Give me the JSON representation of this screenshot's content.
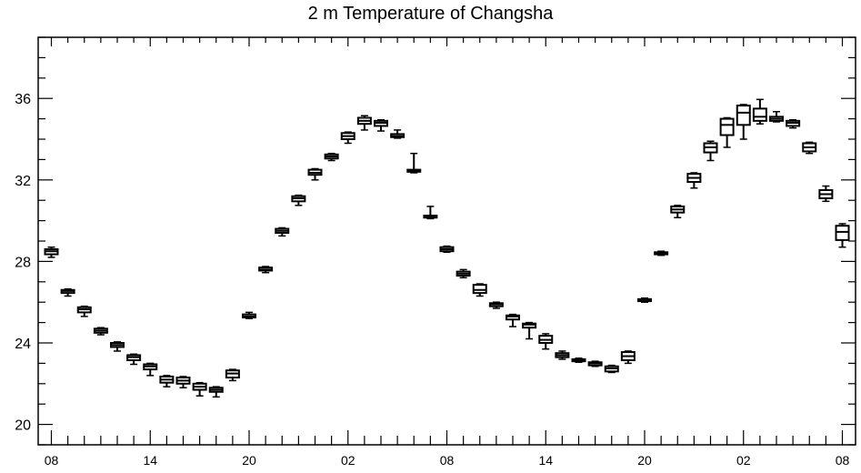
{
  "chart_data": {
    "type": "boxplot",
    "title": "2 m Temperature of Changsha",
    "xlabel": "",
    "ylabel": "",
    "ylim": [
      19,
      39
    ],
    "yticks": [
      20,
      24,
      28,
      32,
      36
    ],
    "x_tick_labels": [
      "08",
      "14",
      "20",
      "02",
      "08",
      "14",
      "20",
      "02",
      "08"
    ],
    "x_tick_label_positions": [
      0,
      6,
      12,
      18,
      24,
      30,
      36,
      42,
      48
    ],
    "x_range": [
      -0.8,
      48.8
    ],
    "grid": false,
    "boxes": [
      {
        "x": 0,
        "q1": 28.35,
        "median": 28.5,
        "q3": 28.6,
        "min": 28.2,
        "max": 28.7
      },
      {
        "x": 1,
        "q1": 26.45,
        "median": 26.55,
        "q3": 26.6,
        "min": 26.3,
        "max": 26.65
      },
      {
        "x": 2,
        "q1": 25.5,
        "median": 25.65,
        "q3": 25.75,
        "min": 25.3,
        "max": 25.8
      },
      {
        "x": 3,
        "q1": 24.5,
        "median": 24.6,
        "q3": 24.7,
        "min": 24.4,
        "max": 24.75
      },
      {
        "x": 4,
        "q1": 23.8,
        "median": 23.9,
        "q3": 24.0,
        "min": 23.6,
        "max": 24.05
      },
      {
        "x": 5,
        "q1": 23.15,
        "median": 23.3,
        "q3": 23.4,
        "min": 22.95,
        "max": 23.45
      },
      {
        "x": 6,
        "q1": 22.7,
        "median": 22.85,
        "q3": 22.95,
        "min": 22.4,
        "max": 23.0
      },
      {
        "x": 7,
        "q1": 22.05,
        "median": 22.2,
        "q3": 22.35,
        "min": 21.85,
        "max": 22.4
      },
      {
        "x": 8,
        "q1": 22.0,
        "median": 22.15,
        "q3": 22.3,
        "min": 21.8,
        "max": 22.35
      },
      {
        "x": 9,
        "q1": 21.7,
        "median": 21.85,
        "q3": 22.0,
        "min": 21.4,
        "max": 22.05
      },
      {
        "x": 10,
        "q1": 21.6,
        "median": 21.7,
        "q3": 21.8,
        "min": 21.35,
        "max": 21.85
      },
      {
        "x": 11,
        "q1": 22.3,
        "median": 22.5,
        "q3": 22.65,
        "min": 22.15,
        "max": 22.7
      },
      {
        "x": 12,
        "q1": 25.25,
        "median": 25.3,
        "q3": 25.4,
        "min": 25.2,
        "max": 25.5
      },
      {
        "x": 13,
        "q1": 27.55,
        "median": 27.6,
        "q3": 27.7,
        "min": 27.45,
        "max": 27.75
      },
      {
        "x": 14,
        "q1": 29.4,
        "median": 29.5,
        "q3": 29.6,
        "min": 29.25,
        "max": 29.65
      },
      {
        "x": 15,
        "q1": 30.95,
        "median": 31.1,
        "q3": 31.2,
        "min": 30.75,
        "max": 31.25
      },
      {
        "x": 16,
        "q1": 32.25,
        "median": 32.35,
        "q3": 32.5,
        "min": 32.0,
        "max": 32.55
      },
      {
        "x": 17,
        "q1": 33.05,
        "median": 33.15,
        "q3": 33.25,
        "min": 32.95,
        "max": 33.3
      },
      {
        "x": 18,
        "q1": 34.0,
        "median": 34.15,
        "q3": 34.3,
        "min": 33.8,
        "max": 34.35
      },
      {
        "x": 19,
        "q1": 34.75,
        "median": 34.9,
        "q3": 35.05,
        "min": 34.45,
        "max": 35.15
      },
      {
        "x": 20,
        "q1": 34.65,
        "median": 34.8,
        "q3": 34.9,
        "min": 34.4,
        "max": 34.95
      },
      {
        "x": 21,
        "q1": 34.1,
        "median": 34.15,
        "q3": 34.25,
        "min": 34.05,
        "max": 34.45
      },
      {
        "x": 22,
        "q1": 32.4,
        "median": 32.45,
        "q3": 32.5,
        "min": 32.35,
        "max": 33.3
      },
      {
        "x": 23,
        "q1": 30.15,
        "median": 30.2,
        "q3": 30.25,
        "min": 30.1,
        "max": 30.7
      },
      {
        "x": 24,
        "q1": 28.5,
        "median": 28.6,
        "q3": 28.7,
        "min": 28.45,
        "max": 28.75
      },
      {
        "x": 25,
        "q1": 27.3,
        "median": 27.4,
        "q3": 27.5,
        "min": 27.2,
        "max": 27.6
      },
      {
        "x": 26,
        "q1": 26.45,
        "median": 26.6,
        "q3": 26.85,
        "min": 26.3,
        "max": 26.9
      },
      {
        "x": 27,
        "q1": 25.8,
        "median": 25.9,
        "q3": 25.95,
        "min": 25.7,
        "max": 26.0
      },
      {
        "x": 28,
        "q1": 25.15,
        "median": 25.3,
        "q3": 25.35,
        "min": 24.8,
        "max": 25.4
      },
      {
        "x": 29,
        "q1": 24.75,
        "median": 24.9,
        "q3": 24.95,
        "min": 24.2,
        "max": 25.0
      },
      {
        "x": 30,
        "q1": 24.0,
        "median": 24.15,
        "q3": 24.35,
        "min": 23.7,
        "max": 24.45
      },
      {
        "x": 31,
        "q1": 23.3,
        "median": 23.4,
        "q3": 23.5,
        "min": 23.2,
        "max": 23.6
      },
      {
        "x": 32,
        "q1": 23.1,
        "median": 23.15,
        "q3": 23.2,
        "min": 23.05,
        "max": 23.25
      },
      {
        "x": 33,
        "q1": 22.9,
        "median": 23.0,
        "q3": 23.05,
        "min": 22.85,
        "max": 23.1
      },
      {
        "x": 34,
        "q1": 22.6,
        "median": 22.75,
        "q3": 22.85,
        "min": 22.55,
        "max": 22.9
      },
      {
        "x": 35,
        "q1": 23.15,
        "median": 23.35,
        "q3": 23.55,
        "min": 23.0,
        "max": 23.6
      },
      {
        "x": 36,
        "q1": 26.05,
        "median": 26.1,
        "q3": 26.15,
        "min": 26.0,
        "max": 26.2
      },
      {
        "x": 37,
        "q1": 28.35,
        "median": 28.4,
        "q3": 28.45,
        "min": 28.3,
        "max": 28.5
      },
      {
        "x": 38,
        "q1": 30.4,
        "median": 30.55,
        "q3": 30.7,
        "min": 30.15,
        "max": 30.75
      },
      {
        "x": 39,
        "q1": 31.9,
        "median": 32.1,
        "q3": 32.3,
        "min": 31.6,
        "max": 32.35
      },
      {
        "x": 40,
        "q1": 33.35,
        "median": 33.6,
        "q3": 33.8,
        "min": 32.95,
        "max": 33.9
      },
      {
        "x": 41,
        "q1": 34.2,
        "median": 34.7,
        "q3": 35.0,
        "min": 33.6,
        "max": 35.05
      },
      {
        "x": 42,
        "q1": 34.7,
        "median": 35.3,
        "q3": 35.65,
        "min": 34.0,
        "max": 35.7
      },
      {
        "x": 43,
        "q1": 34.9,
        "median": 35.1,
        "q3": 35.5,
        "min": 34.75,
        "max": 35.95
      },
      {
        "x": 44,
        "q1": 34.9,
        "median": 35.0,
        "q3": 35.1,
        "min": 34.85,
        "max": 35.35
      },
      {
        "x": 45,
        "q1": 34.65,
        "median": 34.8,
        "q3": 34.9,
        "min": 34.55,
        "max": 34.95
      },
      {
        "x": 46,
        "q1": 33.4,
        "median": 33.6,
        "q3": 33.8,
        "min": 33.3,
        "max": 33.85
      },
      {
        "x": 47,
        "q1": 31.1,
        "median": 31.3,
        "q3": 31.5,
        "min": 30.95,
        "max": 31.7
      },
      {
        "x": 48,
        "q1": 29.05,
        "median": 29.45,
        "q3": 29.75,
        "min": 28.7,
        "max": 29.85
      }
    ]
  },
  "colors": {
    "foreground": "#000000",
    "background": "#ffffff"
  }
}
